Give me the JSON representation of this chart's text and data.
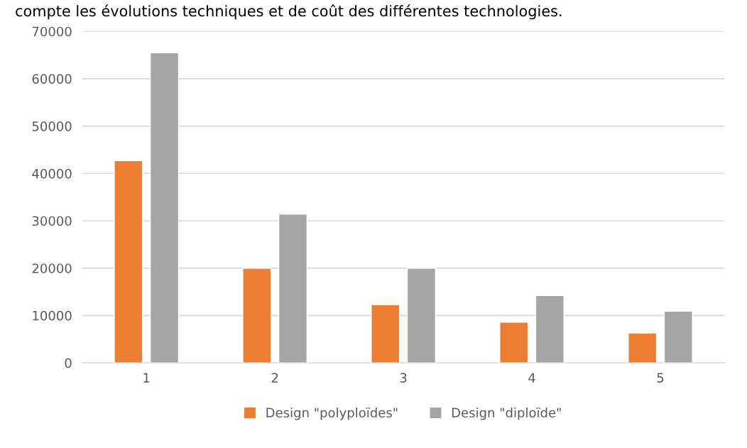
{
  "chart_data": {
    "type": "bar",
    "annotations": [
      "compte les évolutions techniques et de coût des différentes technologies."
    ],
    "categories": [
      "1",
      "2",
      "3",
      "4",
      "5"
    ],
    "series": [
      {
        "name": "Design \"polyploïdes\"",
        "color": "#ed7d31",
        "values": [
          42700,
          20000,
          12300,
          8600,
          6300
        ]
      },
      {
        "name": "Design \"diploïde\"",
        "color": "#a5a5a5",
        "values": [
          65500,
          31400,
          20000,
          14200,
          10900
        ]
      }
    ],
    "ylim": [
      0,
      70000
    ],
    "yticks": [
      0,
      10000,
      20000,
      30000,
      40000,
      50000,
      60000,
      70000
    ],
    "grid": "y",
    "legend": "bottom"
  }
}
